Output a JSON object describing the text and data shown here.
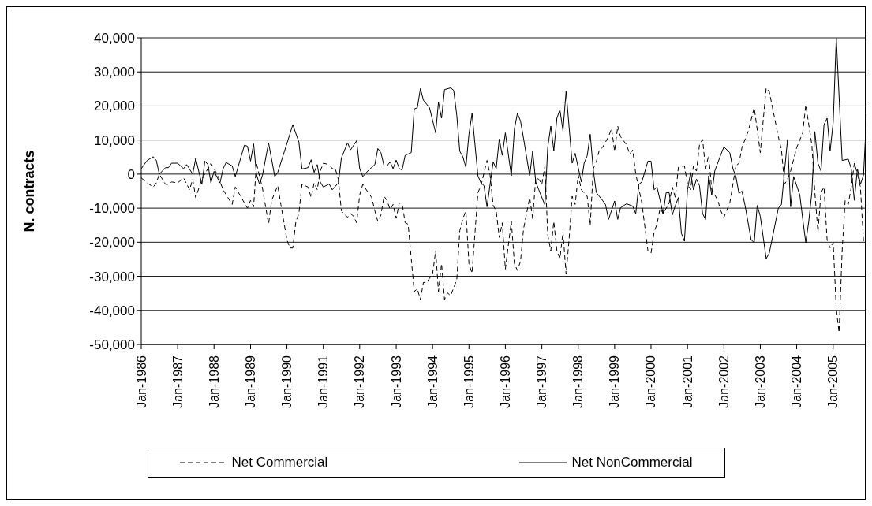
{
  "chart_data": {
    "type": "line",
    "ylabel": "N. contracts",
    "xlim": [
      "1986-01",
      "2005-12"
    ],
    "xticks": [
      {
        "value": "1986-01",
        "label": "Jan-1986"
      },
      {
        "value": "1987-01",
        "label": "Jan-1987"
      },
      {
        "value": "1988-01",
        "label": "Jan-1988"
      },
      {
        "value": "1989-01",
        "label": "Jan-1989"
      },
      {
        "value": "1990-01",
        "label": "Jan-1990"
      },
      {
        "value": "1991-01",
        "label": "Jan-1991"
      },
      {
        "value": "1992-01",
        "label": "Jan-1992"
      },
      {
        "value": "1993-01",
        "label": "Jan-1993"
      },
      {
        "value": "1994-01",
        "label": "Jan-1994"
      },
      {
        "value": "1995-01",
        "label": "Jan-1995"
      },
      {
        "value": "1996-01",
        "label": "Jan-1996"
      },
      {
        "value": "1997-01",
        "label": "Jan-1997"
      },
      {
        "value": "1998-01",
        "label": "Jan-1998"
      },
      {
        "value": "1999-01",
        "label": "Jan-1999"
      },
      {
        "value": "2000-01",
        "label": "Jan-2000"
      },
      {
        "value": "2001-01",
        "label": "Jan-2001"
      },
      {
        "value": "2002-01",
        "label": "Jan-2002"
      },
      {
        "value": "2003-01",
        "label": "Jan-2003"
      },
      {
        "value": "2004-01",
        "label": "Jan-2004"
      },
      {
        "value": "2005-01",
        "label": "Jan-2005"
      }
    ],
    "ylim": [
      -50000,
      40000
    ],
    "yticks": [
      {
        "value": -50000,
        "label": "-50,000"
      },
      {
        "value": -40000,
        "label": "-40,000"
      },
      {
        "value": -30000,
        "label": "-30,000"
      },
      {
        "value": -20000,
        "label": "-20,000"
      },
      {
        "value": -10000,
        "label": "-10,000"
      },
      {
        "value": 0,
        "label": "0"
      },
      {
        "value": 10000,
        "label": "10,000"
      },
      {
        "value": 20000,
        "label": "20,000"
      },
      {
        "value": 30000,
        "label": "30,000"
      },
      {
        "value": 40000,
        "label": "40,000"
      }
    ],
    "grid": "y",
    "legend": "bottom",
    "marker": "none",
    "series": [
      {
        "name": "Net Commercial",
        "color": "#000000",
        "line_style": "dashed",
        "x": [
          "1986-01",
          "1986-03",
          "1986-05",
          "1986-06",
          "1986-07",
          "1986-09",
          "1986-10",
          "1986-11",
          "1987-01",
          "1987-03",
          "1987-05",
          "1987-06",
          "1987-07",
          "1987-09",
          "1987-12",
          "1988-02",
          "1988-04",
          "1988-07",
          "1988-08",
          "1988-12",
          "1989-01",
          "1989-02",
          "1989-03",
          "1989-05",
          "1989-07",
          "1989-08",
          "1989-10",
          "1989-11",
          "1990-01",
          "1990-02",
          "1990-03",
          "1990-04",
          "1990-05",
          "1990-06",
          "1990-08",
          "1990-09",
          "1990-10",
          "1990-11",
          "1990-12",
          "1991-01",
          "1991-03",
          "1991-04",
          "1991-05",
          "1991-06",
          "1991-07",
          "1991-09",
          "1991-10",
          "1991-11",
          "1991-12",
          "1992-01",
          "1992-02",
          "1992-04",
          "1992-05",
          "1992-06",
          "1992-07",
          "1992-08",
          "1992-09",
          "1992-10",
          "1992-11",
          "1992-12",
          "1993-01",
          "1993-02",
          "1993-03",
          "1993-04",
          "1993-05",
          "1993-07",
          "1993-08",
          "1993-09",
          "1993-10",
          "1993-11",
          "1994-01",
          "1994-02",
          "1994-03",
          "1994-04",
          "1994-05",
          "1994-06",
          "1994-07",
          "1994-09",
          "1994-10",
          "1994-11",
          "1994-12",
          "1995-01",
          "1995-02",
          "1995-04",
          "1995-05",
          "1995-07",
          "1995-08",
          "1995-09",
          "1995-10",
          "1995-11",
          "1995-12",
          "1996-01",
          "1996-03",
          "1996-04",
          "1996-05",
          "1996-06",
          "1996-07",
          "1996-09",
          "1996-10",
          "1996-11",
          "1996-12",
          "1997-01",
          "1997-02",
          "1997-03",
          "1997-04",
          "1997-05",
          "1997-06",
          "1997-07",
          "1997-08",
          "1997-09",
          "1997-10",
          "1997-11",
          "1997-12",
          "1998-01",
          "1998-02",
          "1998-04",
          "1998-05",
          "1998-06",
          "1998-07",
          "1998-08",
          "1998-09",
          "1998-11",
          "1998-12",
          "1999-01",
          "1999-02",
          "1999-03",
          "1999-05",
          "1999-06",
          "1999-07",
          "1999-08",
          "1999-10",
          "1999-12",
          "2000-01",
          "2000-02",
          "2000-03",
          "2000-04",
          "2000-05",
          "2000-07",
          "2000-08",
          "2000-09",
          "2000-10",
          "2000-12",
          "2001-01",
          "2001-02",
          "2001-03",
          "2001-04",
          "2001-05",
          "2001-06",
          "2001-07",
          "2001-08",
          "2001-09",
          "2001-11",
          "2001-12",
          "2002-01",
          "2002-03",
          "2002-04",
          "2002-05",
          "2002-06",
          "2002-07",
          "2002-09",
          "2002-11",
          "2003-01",
          "2003-02",
          "2003-03",
          "2003-04",
          "2003-07",
          "2003-08",
          "2003-09",
          "2003-10",
          "2003-11",
          "2004-01",
          "2004-03",
          "2004-04",
          "2004-06",
          "2004-07",
          "2004-08",
          "2004-09",
          "2004-10",
          "2004-11",
          "2004-12",
          "2005-01",
          "2005-02",
          "2005-03",
          "2005-04",
          "2005-05",
          "2005-06",
          "2005-07",
          "2005-08",
          "2005-09",
          "2005-10",
          "2005-11"
        ],
        "values": [
          -1100,
          -2600,
          -3800,
          -2600,
          0,
          -3000,
          -3000,
          -2300,
          -2600,
          -1100,
          -4600,
          -1500,
          -6900,
          -1500,
          3200,
          0,
          -4600,
          -8900,
          -3800,
          -10000,
          -7700,
          -9600,
          3200,
          -4200,
          -14700,
          -7700,
          -3400,
          -8900,
          -19300,
          -21700,
          -21700,
          -13900,
          -11600,
          -3000,
          -3800,
          -6900,
          -2600,
          -4600,
          900,
          3200,
          2800,
          1600,
          1600,
          -1500,
          -10800,
          -12700,
          -11600,
          -12400,
          -14300,
          -6100,
          -3000,
          -5700,
          -6900,
          -10800,
          -13900,
          -12000,
          -6500,
          -7700,
          -10400,
          -8900,
          -13000,
          -8500,
          -8500,
          -14300,
          -14700,
          -34500,
          -33700,
          -36800,
          -31800,
          -31800,
          -29400,
          -22500,
          -34500,
          -26300,
          -36800,
          -34900,
          -35700,
          -31000,
          -16600,
          -13100,
          -10800,
          -26300,
          -29100,
          -5400,
          -3400,
          4000,
          -300,
          -9200,
          -10800,
          -18600,
          -14300,
          -27900,
          -13900,
          -26300,
          -28300,
          -25600,
          -16200,
          -6900,
          -13100,
          -1100,
          -1500,
          -3000,
          2400,
          -17800,
          -22500,
          -13900,
          -22500,
          -24800,
          -17000,
          -29400,
          -19300,
          -6500,
          -8900,
          -300,
          -4600,
          -6500,
          -15100,
          1600,
          3600,
          7100,
          7800,
          11000,
          13400,
          6700,
          14100,
          11000,
          8600,
          5900,
          7100,
          100,
          -8500,
          -22500,
          -23200,
          -17000,
          -14700,
          -10000,
          -11600,
          -8500,
          -3800,
          -6900,
          2000,
          2400,
          -3000,
          -4600,
          2400,
          900,
          8600,
          10200,
          1600,
          5500,
          -4600,
          -7700,
          -10800,
          -12700,
          -8500,
          -3000,
          2400,
          3200,
          7800,
          12500,
          19500,
          6300,
          16400,
          25300,
          24200,
          11000,
          7100,
          -3000,
          -1500,
          900,
          7800,
          12100,
          20300,
          8600,
          -5400,
          -17000,
          -5400,
          -3800,
          -19300,
          -21700,
          -20100,
          -39500,
          -46500,
          -22500,
          -7700,
          -8900,
          -3800,
          3200,
          100,
          -3800,
          -19700
        ]
      },
      {
        "name": "Net NonCommercial",
        "color": "#000000",
        "line_style": "solid",
        "x": [
          "1986-01",
          "1986-03",
          "1986-05",
          "1986-06",
          "1986-07",
          "1986-09",
          "1986-10",
          "1986-11",
          "1987-01",
          "1987-03",
          "1987-04",
          "1987-06",
          "1987-07",
          "1987-09",
          "1987-10",
          "1987-11",
          "1987-12",
          "1988-01",
          "1988-03",
          "1988-04",
          "1988-05",
          "1988-07",
          "1988-08",
          "1988-11",
          "1988-12",
          "1989-01",
          "1989-02",
          "1989-03",
          "1989-04",
          "1989-05",
          "1989-07",
          "1989-09",
          "1989-10",
          "1990-01",
          "1990-03",
          "1990-05",
          "1990-06",
          "1990-08",
          "1990-09",
          "1990-10",
          "1990-11",
          "1990-12",
          "1991-01",
          "1991-03",
          "1991-04",
          "1991-06",
          "1991-07",
          "1991-09",
          "1991-10",
          "1991-12",
          "1992-01",
          "1992-02",
          "1992-04",
          "1992-06",
          "1992-07",
          "1992-08",
          "1992-09",
          "1992-10",
          "1992-11",
          "1992-12",
          "1993-01",
          "1993-02",
          "1993-03",
          "1993-04",
          "1993-06",
          "1993-07",
          "1993-08",
          "1993-09",
          "1993-10",
          "1993-12",
          "1994-02",
          "1994-03",
          "1994-04",
          "1994-05",
          "1994-07",
          "1994-08",
          "1994-09",
          "1994-10",
          "1994-11",
          "1994-12",
          "1995-01",
          "1995-02",
          "1995-04",
          "1995-05",
          "1995-06",
          "1995-07",
          "1995-09",
          "1995-10",
          "1995-11",
          "1995-12",
          "1996-01",
          "1996-03",
          "1996-04",
          "1996-05",
          "1996-06",
          "1996-07",
          "1996-09",
          "1996-10",
          "1996-11",
          "1996-12",
          "1997-02",
          "1997-03",
          "1997-04",
          "1997-05",
          "1997-06",
          "1997-07",
          "1997-08",
          "1997-09",
          "1997-11",
          "1997-12",
          "1998-02",
          "1998-03",
          "1998-04",
          "1998-05",
          "1998-06",
          "1998-07",
          "1998-09",
          "1998-10",
          "1998-11",
          "1999-01",
          "1999-02",
          "1999-03",
          "1999-05",
          "1999-07",
          "1999-08",
          "1999-09",
          "1999-10",
          "1999-12",
          "2000-01",
          "2000-02",
          "2000-03",
          "2000-04",
          "2000-05",
          "2000-06",
          "2000-07",
          "2000-08",
          "2000-09",
          "2000-10",
          "2000-11",
          "2000-12",
          "2001-01",
          "2001-02",
          "2001-03",
          "2001-04",
          "2001-05",
          "2001-06",
          "2001-07",
          "2001-08",
          "2001-09",
          "2001-10",
          "2001-12",
          "2002-01",
          "2002-03",
          "2002-04",
          "2002-05",
          "2002-06",
          "2002-07",
          "2002-08",
          "2002-10",
          "2002-11",
          "2002-12",
          "2003-01",
          "2003-03",
          "2003-04",
          "2003-07",
          "2003-08",
          "2003-09",
          "2003-10",
          "2003-11",
          "2003-12",
          "2004-02",
          "2004-03",
          "2004-04",
          "2004-05",
          "2004-06",
          "2004-07",
          "2004-08",
          "2004-09",
          "2004-10",
          "2004-11",
          "2004-12",
          "2005-01",
          "2005-02",
          "2005-04",
          "2005-06",
          "2005-07",
          "2005-08",
          "2005-09",
          "2005-10",
          "2005-11",
          "2005-12"
        ],
        "values": [
          1600,
          4000,
          5100,
          4000,
          0,
          1900,
          1900,
          3200,
          3200,
          1600,
          2800,
          0,
          4600,
          -3000,
          3800,
          2800,
          -2600,
          800,
          -2600,
          1600,
          3400,
          2400,
          -700,
          8500,
          8200,
          3800,
          8900,
          0,
          -3000,
          -300,
          9200,
          -700,
          500,
          9000,
          14500,
          9400,
          1500,
          1900,
          4200,
          500,
          2800,
          -2300,
          -3800,
          -2900,
          -4600,
          -2600,
          4700,
          9200,
          7100,
          9800,
          1600,
          -700,
          1200,
          2800,
          7500,
          6300,
          2400,
          2400,
          3600,
          1600,
          4100,
          1600,
          1200,
          5500,
          6300,
          19100,
          19500,
          25100,
          21700,
          19500,
          12100,
          21100,
          16400,
          24800,
          25300,
          24600,
          17200,
          6700,
          5100,
          2000,
          11700,
          17800,
          -500,
          -2600,
          -3400,
          -9600,
          3600,
          1600,
          10300,
          5500,
          12100,
          -500,
          13300,
          17800,
          15600,
          10600,
          -500,
          6700,
          -2300,
          -4600,
          -9100,
          7800,
          14100,
          6900,
          16400,
          18900,
          12700,
          24300,
          3200,
          6100,
          -2300,
          3200,
          5400,
          11700,
          1200,
          -5400,
          -7700,
          -8900,
          -13300,
          -7900,
          -13300,
          -9900,
          -8700,
          -9400,
          -11600,
          -3000,
          -2300,
          3800,
          3800,
          -4600,
          -3800,
          -7700,
          -11600,
          -5400,
          -5500,
          -12000,
          -9200,
          -6900,
          -17400,
          -19700,
          -4600,
          500,
          -4600,
          -1500,
          -3400,
          -11600,
          -13300,
          -500,
          -6100,
          900,
          5700,
          8000,
          6300,
          1600,
          -700,
          -5700,
          -5000,
          -9200,
          -19300,
          -20100,
          -9200,
          -12400,
          -24800,
          -23200,
          -10000,
          -8900,
          900,
          10200,
          -9600,
          -700,
          -6100,
          -13100,
          -20100,
          -13900,
          -5400,
          12500,
          3200,
          900,
          14500,
          16400,
          6700,
          15200,
          40000,
          4000,
          4400,
          1600,
          -7700,
          1600,
          -3000,
          -300,
          16800
        ]
      }
    ]
  }
}
